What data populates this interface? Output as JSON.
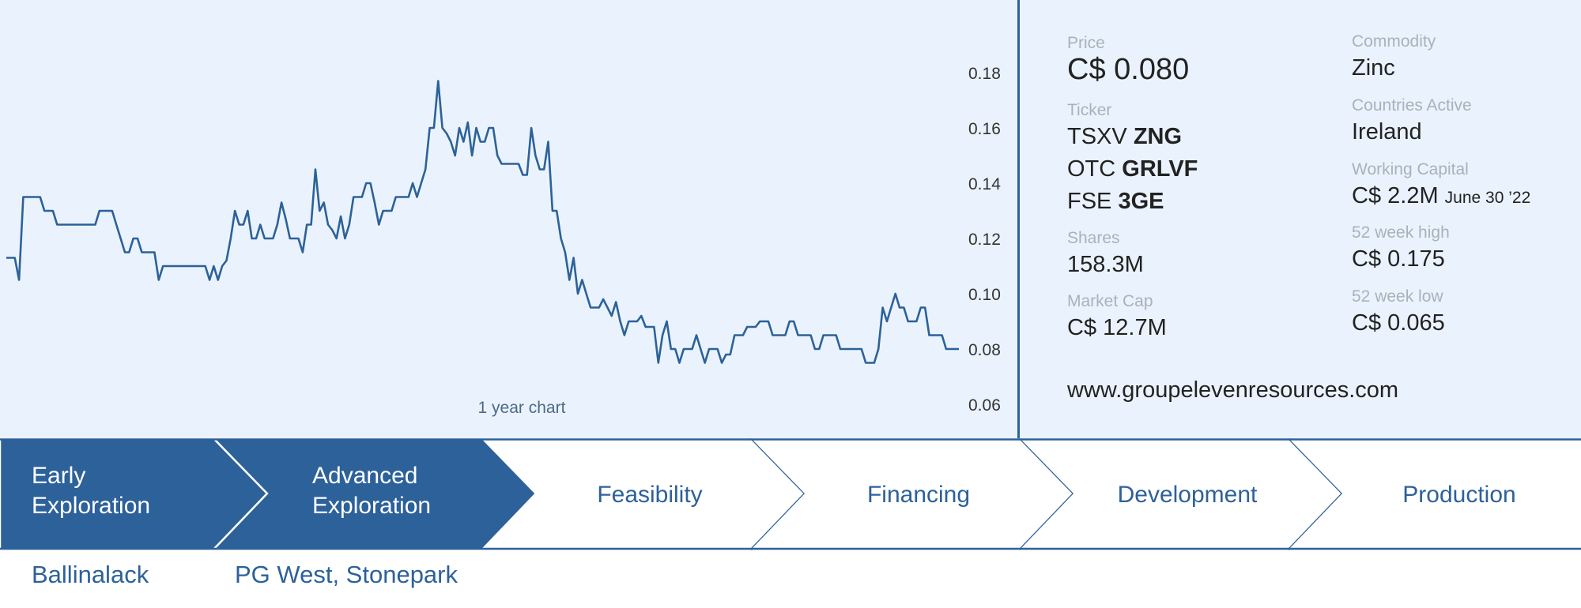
{
  "chart_data": {
    "type": "line",
    "caption": "1 year chart",
    "ylim": [
      0.06,
      0.18
    ],
    "yticks": [
      0.18,
      0.16,
      0.14,
      0.12,
      0.1,
      0.08,
      0.06
    ],
    "values": [
      0.113,
      0.113,
      0.113,
      0.105,
      0.135,
      0.135,
      0.135,
      0.135,
      0.135,
      0.13,
      0.13,
      0.13,
      0.125,
      0.125,
      0.125,
      0.125,
      0.125,
      0.125,
      0.125,
      0.125,
      0.125,
      0.125,
      0.13,
      0.13,
      0.13,
      0.13,
      0.125,
      0.12,
      0.115,
      0.115,
      0.12,
      0.12,
      0.115,
      0.115,
      0.115,
      0.115,
      0.105,
      0.11,
      0.11,
      0.11,
      0.11,
      0.11,
      0.11,
      0.11,
      0.11,
      0.11,
      0.11,
      0.11,
      0.105,
      0.11,
      0.105,
      0.11,
      0.112,
      0.12,
      0.13,
      0.125,
      0.125,
      0.13,
      0.12,
      0.12,
      0.125,
      0.12,
      0.12,
      0.12,
      0.125,
      0.133,
      0.127,
      0.12,
      0.12,
      0.12,
      0.115,
      0.125,
      0.125,
      0.145,
      0.13,
      0.133,
      0.125,
      0.123,
      0.12,
      0.128,
      0.12,
      0.125,
      0.135,
      0.135,
      0.135,
      0.14,
      0.14,
      0.133,
      0.125,
      0.13,
      0.13,
      0.13,
      0.135,
      0.135,
      0.135,
      0.135,
      0.14,
      0.135,
      0.14,
      0.145,
      0.16,
      0.16,
      0.177,
      0.16,
      0.158,
      0.155,
      0.15,
      0.16,
      0.155,
      0.162,
      0.15,
      0.16,
      0.155,
      0.155,
      0.16,
      0.16,
      0.15,
      0.147,
      0.147,
      0.147,
      0.147,
      0.147,
      0.143,
      0.143,
      0.16,
      0.15,
      0.145,
      0.145,
      0.155,
      0.13,
      0.13,
      0.12,
      0.115,
      0.105,
      0.113,
      0.1,
      0.105,
      0.1,
      0.095,
      0.095,
      0.095,
      0.098,
      0.095,
      0.092,
      0.097,
      0.09,
      0.085,
      0.09,
      0.09,
      0.09,
      0.092,
      0.088,
      0.088,
      0.088,
      0.075,
      0.085,
      0.09,
      0.08,
      0.08,
      0.075,
      0.08,
      0.08,
      0.08,
      0.085,
      0.08,
      0.075,
      0.08,
      0.08,
      0.08,
      0.075,
      0.078,
      0.078,
      0.085,
      0.085,
      0.085,
      0.088,
      0.088,
      0.088,
      0.09,
      0.09,
      0.09,
      0.085,
      0.085,
      0.085,
      0.085,
      0.09,
      0.09,
      0.085,
      0.085,
      0.085,
      0.085,
      0.08,
      0.08,
      0.085,
      0.085,
      0.085,
      0.085,
      0.08,
      0.08,
      0.08,
      0.08,
      0.08,
      0.08,
      0.075,
      0.075,
      0.075,
      0.08,
      0.095,
      0.09,
      0.095,
      0.1,
      0.095,
      0.095,
      0.09,
      0.09,
      0.09,
      0.095,
      0.095,
      0.085,
      0.085,
      0.085,
      0.085,
      0.08,
      0.08,
      0.08,
      0.08
    ]
  },
  "stats": {
    "price_label": "Price",
    "price_value": "C$ 0.080",
    "ticker_label": "Ticker",
    "tickers": [
      {
        "exchange": "TSXV",
        "symbol": "ZNG"
      },
      {
        "exchange": "OTC",
        "symbol": "GRLVF"
      },
      {
        "exchange": "FSE",
        "symbol": "3GE"
      }
    ],
    "shares_label": "Shares",
    "shares_value": "158.3M",
    "market_cap_label": "Market Cap",
    "market_cap_value": "C$ 12.7M",
    "commodity_label": "Commodity",
    "commodity_value": "Zinc",
    "countries_label": "Countries Active",
    "countries_value": "Ireland",
    "working_capital_label": "Working Capital",
    "working_capital_value": "C$ 2.2M",
    "working_capital_date": "June 30 ’22",
    "high_label": "52 week high",
    "high_value": "C$ 0.175",
    "low_label": "52 week low",
    "low_value": "C$ 0.065",
    "website": "www.groupelevenresources.com"
  },
  "pipeline": {
    "stages": [
      {
        "lines": [
          "Early",
          "Exploration"
        ],
        "active": true
      },
      {
        "lines": [
          "Advanced",
          "Exploration"
        ],
        "active": true
      },
      {
        "lines": [
          "Feasibility"
        ],
        "active": false
      },
      {
        "lines": [
          "Financing"
        ],
        "active": false
      },
      {
        "lines": [
          "Development"
        ],
        "active": false
      },
      {
        "lines": [
          "Production"
        ],
        "active": false
      }
    ],
    "projects": [
      "Ballinalack",
      "PG West, Stonepark"
    ]
  },
  "colors": {
    "accent": "#2d6199",
    "panel_bg": "#eaf3fd",
    "label_gray": "#a9b1b9"
  }
}
